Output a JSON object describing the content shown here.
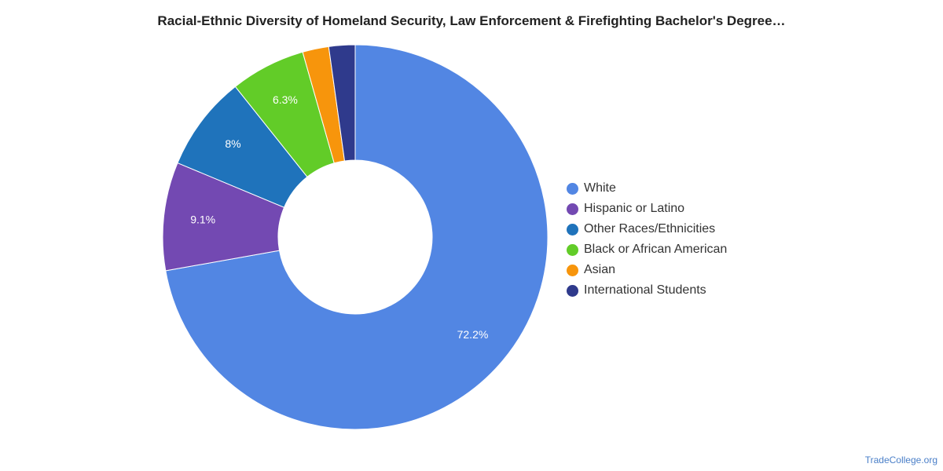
{
  "chart_data": {
    "type": "pie",
    "title": "Racial-Ethnic Diversity of Homeland Security, Law Enforcement & Firefighting Bachelor's Degree…",
    "donut": true,
    "legend_position": "right",
    "start_angle": "top, clockwise",
    "slices": [
      {
        "label": "White",
        "value": 72.2,
        "display": "72.2%",
        "color": "#5286e3"
      },
      {
        "label": "Hispanic or Latino",
        "value": 9.1,
        "display": "9.1%",
        "color": "#7349b2"
      },
      {
        "label": "Other Races/Ethnicities",
        "value": 8.0,
        "display": "8%",
        "color": "#1f73bb"
      },
      {
        "label": "Black or African American",
        "value": 6.3,
        "display": "6.3%",
        "color": "#62cc28"
      },
      {
        "label": "Asian",
        "value": 2.2,
        "display": "",
        "color": "#f7950c"
      },
      {
        "label": "International Students",
        "value": 2.2,
        "display": "",
        "color": "#2f3a8c"
      }
    ]
  },
  "footer": {
    "watermark": "TradeCollege.org"
  }
}
